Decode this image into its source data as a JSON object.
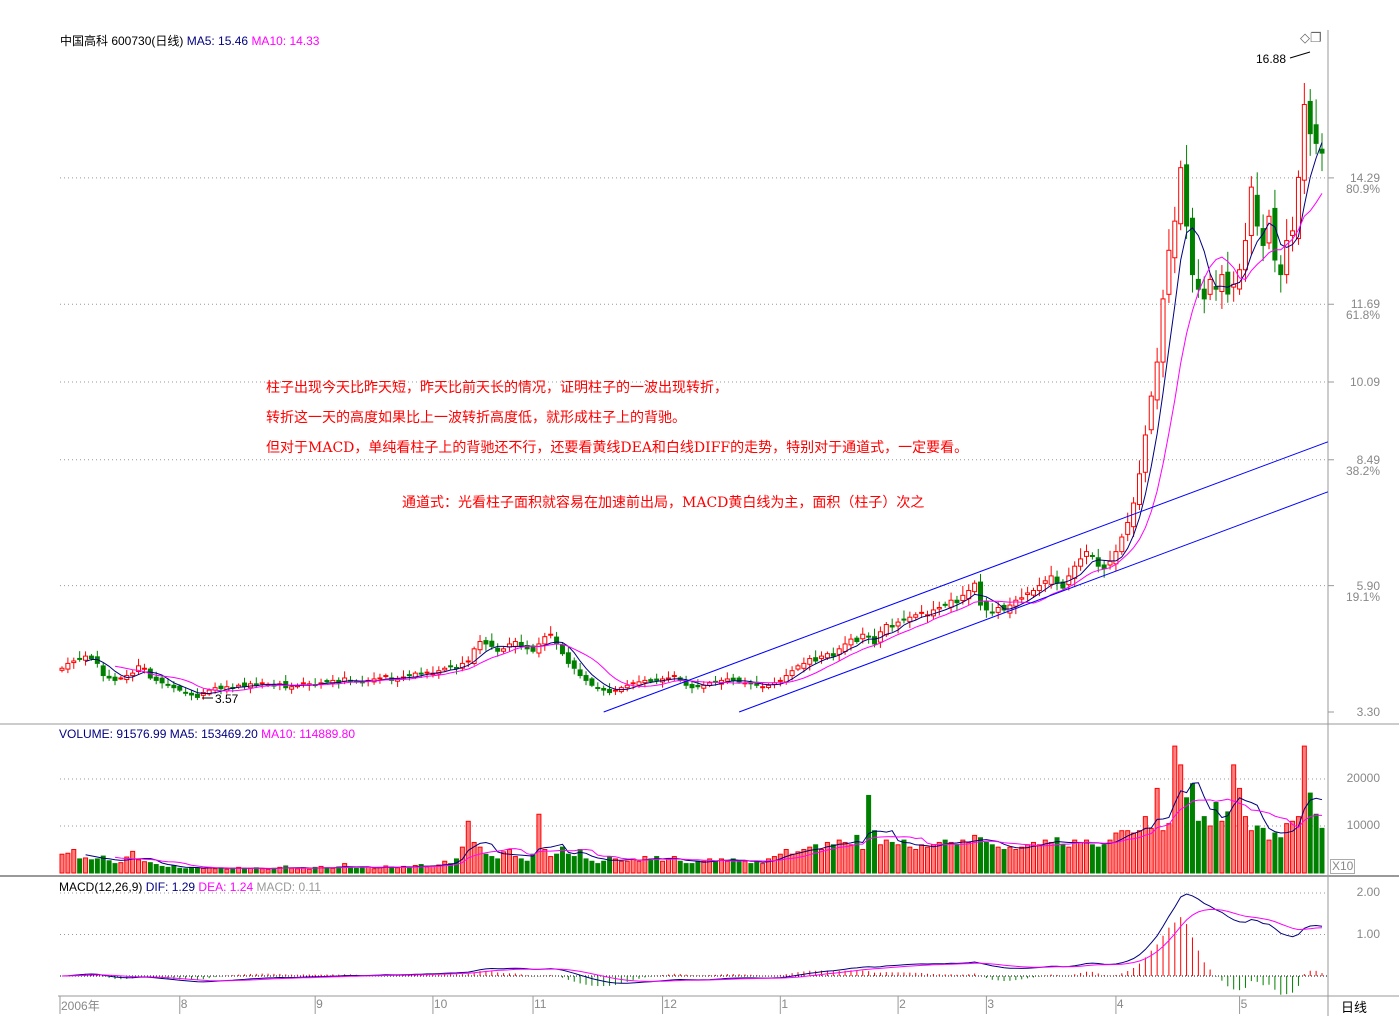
{
  "header": {
    "title": "中国高科 600730(日线)",
    "ma5_label": "MA5: 15.46",
    "ma10_label": "MA10: 14.33",
    "high_marker": "16.88",
    "low_marker": "3.57"
  },
  "volume_header": {
    "volume": "VOLUME: 91576.99",
    "ma5": "MA5: 153469.20",
    "ma10": "MA10: 114889.80",
    "multiplier": "X10"
  },
  "macd_header": {
    "name": "MACD(12,26,9)",
    "dif": "DIF: 1.29",
    "dea": "DEA: 1.24",
    "macd": "MACD: 0.11"
  },
  "annotations": [
    "柱子出现今天比昨天短，昨天比前天长的情况，证明柱子的一波出现转折，",
    "转折这一天的高度如果比上一波转折高度低，就形成柱子上的背驰。",
    "但对于MACD，单纯看柱子上的背驰还不行，还要看黄线DEA和白线DIFF的走势，特别对于通道式，一定要看。",
    "通道式：光看柱子面积就容易在加速前出局，MACD黄白线为主，面积（柱子）次之"
  ],
  "period_label": "日线",
  "colors": {
    "up": "#ff0000",
    "down": "#008000",
    "ma5": "#000080",
    "ma10": "#ff00ff",
    "channel": "#0000ff",
    "grid": "#999999"
  },
  "chart_data": {
    "type": "candlestick",
    "price_axis": {
      "ylim": [
        3.3,
        16.88
      ],
      "ticks": [
        {
          "value": 14.29,
          "label": "14.29",
          "pct": "80.9%"
        },
        {
          "value": 11.69,
          "label": "11.69",
          "pct": "61.8%"
        },
        {
          "value": 10.09,
          "label": "10.09",
          "pct": ""
        },
        {
          "value": 8.49,
          "label": "8.49",
          "pct": "38.2%"
        },
        {
          "value": 5.9,
          "label": "5.90",
          "pct": "19.1%"
        },
        {
          "value": 3.3,
          "label": "3.30",
          "pct": ""
        }
      ]
    },
    "volume_axis": {
      "ylim": [
        0,
        20000
      ],
      "ticks": [
        {
          "value": 20000,
          "label": "20000"
        },
        {
          "value": 10000,
          "label": "10000"
        }
      ]
    },
    "macd_axis": {
      "ticks": [
        {
          "value": 2.0,
          "label": "2.00"
        },
        {
          "value": 1.0,
          "label": "1.00"
        }
      ],
      "params": [
        12,
        26,
        9
      ]
    },
    "x_axis": {
      "months": [
        {
          "label": "2006年",
          "index": 0
        },
        {
          "label": "8",
          "index": 20
        },
        {
          "label": "9",
          "index": 43
        },
        {
          "label": "10",
          "index": 63
        },
        {
          "label": "11",
          "index": 80
        },
        {
          "label": "12",
          "index": 102
        },
        {
          "label": "1",
          "index": 122
        },
        {
          "label": "2",
          "index": 142
        },
        {
          "label": "3",
          "index": 157
        },
        {
          "label": "4",
          "index": 179
        },
        {
          "label": "5",
          "index": 200
        }
      ]
    },
    "channel_lines": [
      {
        "from": [
          92,
          3.3
        ],
        "to": [
          215,
          8.86
        ]
      },
      {
        "from": [
          115,
          3.3
        ],
        "to": [
          215,
          7.83
        ]
      }
    ],
    "close": [
      4.2,
      4.3,
      4.35,
      4.4,
      4.45,
      4.4,
      4.3,
      4.05,
      4.0,
      3.95,
      4.0,
      4.05,
      4.1,
      4.25,
      4.2,
      4.0,
      3.95,
      3.9,
      3.85,
      3.8,
      3.75,
      3.7,
      3.65,
      3.6,
      3.7,
      3.75,
      3.8,
      3.78,
      3.82,
      3.8,
      3.85,
      3.83,
      3.88,
      3.85,
      3.9,
      3.87,
      3.85,
      3.88,
      3.8,
      3.82,
      3.85,
      3.9,
      3.88,
      3.86,
      3.9,
      3.92,
      3.95,
      3.9,
      4.0,
      3.95,
      3.92,
      3.9,
      3.95,
      3.98,
      4.0,
      4.05,
      3.95,
      3.98,
      4.02,
      4.05,
      4.1,
      4.08,
      4.12,
      4.1,
      4.15,
      4.2,
      4.25,
      4.2,
      4.3,
      4.35,
      4.6,
      4.75,
      4.7,
      4.65,
      4.55,
      4.6,
      4.7,
      4.75,
      4.65,
      4.6,
      4.55,
      4.7,
      4.85,
      4.9,
      4.7,
      4.5,
      4.3,
      4.2,
      4.05,
      3.95,
      3.85,
      3.8,
      3.75,
      3.7,
      3.75,
      3.8,
      3.85,
      3.9,
      3.92,
      3.95,
      3.93,
      3.95,
      3.98,
      4.0,
      4.05,
      3.95,
      3.85,
      3.8,
      3.82,
      3.85,
      3.9,
      3.92,
      3.95,
      3.98,
      3.95,
      3.92,
      3.9,
      3.88,
      3.85,
      3.82,
      3.85,
      3.9,
      3.95,
      4.05,
      4.15,
      4.25,
      4.3,
      4.4,
      4.35,
      4.45,
      4.5,
      4.45,
      4.6,
      4.7,
      4.8,
      4.75,
      4.9,
      4.85,
      4.7,
      4.95,
      5.1,
      5.05,
      5.15,
      5.2,
      5.25,
      5.3,
      5.35,
      5.3,
      5.4,
      5.45,
      5.5,
      5.6,
      5.55,
      5.7,
      5.8,
      5.95,
      5.5,
      5.4,
      5.35,
      5.45,
      5.4,
      5.5,
      5.6,
      5.65,
      5.75,
      5.8,
      5.9,
      6.0,
      6.1,
      5.95,
      5.85,
      6.1,
      6.3,
      6.45,
      6.6,
      6.5,
      6.3,
      6.25,
      6.4,
      6.6,
      6.9,
      7.2,
      7.6,
      8.2,
      9.0,
      9.8,
      10.5,
      11.8,
      12.8,
      13.4,
      14.5,
      13.3,
      12.3,
      12.0,
      11.8,
      12.2,
      12.0,
      12.3,
      11.9,
      12.1,
      12.4,
      13.0,
      14.1,
      13.3,
      12.9,
      13.5,
      12.6,
      12.3,
      13.0,
      13.2,
      14.3,
      15.8,
      15.2,
      15.0,
      14.8
    ],
    "volume": [
      4000,
      4200,
      5000,
      3000,
      3200,
      2800,
      3000,
      3600,
      2600,
      2000,
      2200,
      3400,
      4600,
      2800,
      2400,
      2200,
      1800,
      1400,
      1200,
      1600,
      1000,
      900,
      1200,
      1100,
      1000,
      1200,
      900,
      1100,
      800,
      1000,
      1200,
      900,
      1000,
      1100,
      900,
      800,
      1000,
      1200,
      1500,
      1000,
      900,
      1100,
      800,
      1200,
      1400,
      1100,
      1000,
      1300,
      2000,
      1200,
      1000,
      1100,
      1300,
      900,
      1200,
      1500,
      1300,
      1100,
      1400,
      1200,
      1600,
      1800,
      1300,
      1500,
      1700,
      2500,
      2000,
      3000,
      5500,
      11000,
      6500,
      5500,
      4000,
      3500,
      3000,
      4500,
      5000,
      3500,
      3000,
      2500,
      4000,
      12500,
      5000,
      3500,
      4000,
      5500,
      4000,
      3500,
      5000,
      3000,
      2500,
      2000,
      2500,
      3500,
      3000,
      2500,
      2500,
      3000,
      2500,
      3500,
      3000,
      3500,
      2500,
      3000,
      3500,
      2500,
      2000,
      2000,
      2500,
      2500,
      3000,
      2500,
      3000,
      2500,
      3000,
      2500,
      2500,
      2000,
      2500,
      2000,
      3000,
      3500,
      4000,
      5000,
      4000,
      4500,
      5000,
      5500,
      6000,
      5000,
      6500,
      6000,
      7000,
      6500,
      6000,
      8000,
      5000,
      16500,
      9000,
      6000,
      7000,
      6500,
      6000,
      7000,
      5500,
      5000,
      6000,
      5500,
      6000,
      6500,
      7000,
      6500,
      6000,
      7000,
      6500,
      8000,
      7500,
      6500,
      6000,
      5500,
      5000,
      5500,
      5000,
      5500,
      6000,
      6500,
      6000,
      7000,
      6500,
      7500,
      6000,
      5500,
      7000,
      6500,
      7000,
      6000,
      5500,
      6000,
      7000,
      8500,
      9000,
      9000,
      8500,
      9000,
      12000,
      9500,
      18000,
      9000,
      10500,
      27000,
      23000,
      16000,
      19000,
      11000,
      12000,
      10000,
      15000,
      11000,
      13000,
      23000,
      18000,
      12000,
      9000,
      10000,
      9500,
      7000,
      8500,
      7500,
      10500,
      11000,
      12000,
      27000,
      17000,
      12500,
      9500
    ]
  }
}
